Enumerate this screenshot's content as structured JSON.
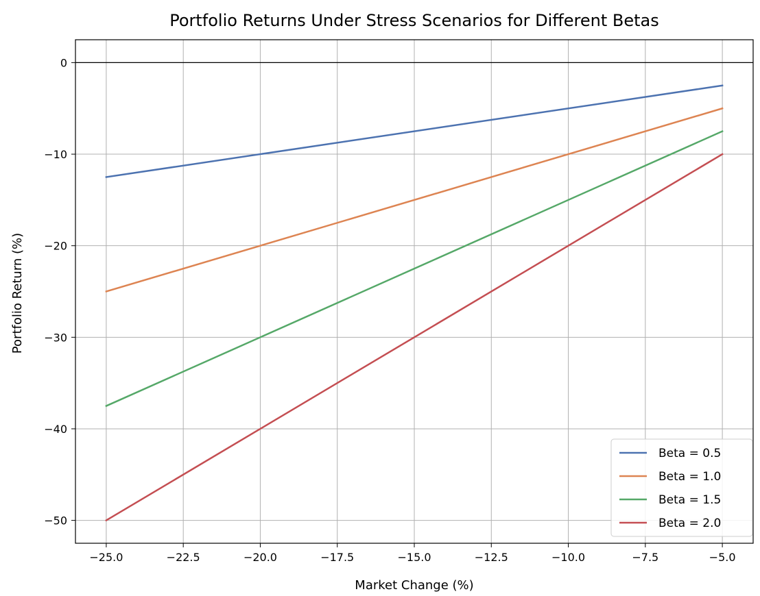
{
  "chart_data": {
    "type": "line",
    "title": "Portfolio Returns Under Stress Scenarios for Different Betas",
    "xlabel": "Market Change (%)",
    "ylabel": "Portfolio Return (%)",
    "x": [
      -25,
      -5
    ],
    "xlim": [
      -26,
      -4
    ],
    "ylim": [
      -52.5,
      2.5
    ],
    "xticks": [
      -25,
      -22.5,
      -20,
      -17.5,
      -15,
      -12.5,
      -10,
      -7.5,
      -5
    ],
    "xtick_labels": [
      "−25.0",
      "−22.5",
      "−20.0",
      "−17.5",
      "−15.0",
      "−12.5",
      "−10.0",
      "−7.5",
      "−5.0"
    ],
    "yticks": [
      0,
      -10,
      -20,
      -30,
      -40,
      -50
    ],
    "ytick_labels": [
      "0",
      "−10",
      "−20",
      "−30",
      "−40",
      "−50"
    ],
    "grid": true,
    "reference_line_y": 0,
    "legend_position": "lower-right",
    "series": [
      {
        "name": "Beta = 0.5",
        "values": [
          -12.5,
          -2.5
        ],
        "color": "#4c72b0"
      },
      {
        "name": "Beta = 1.0",
        "values": [
          -25,
          -5
        ],
        "color": "#dd8452"
      },
      {
        "name": "Beta = 1.5",
        "values": [
          -37.5,
          -7.5
        ],
        "color": "#55a868"
      },
      {
        "name": "Beta = 2.0",
        "values": [
          -50,
          -10
        ],
        "color": "#c44e52"
      }
    ]
  }
}
